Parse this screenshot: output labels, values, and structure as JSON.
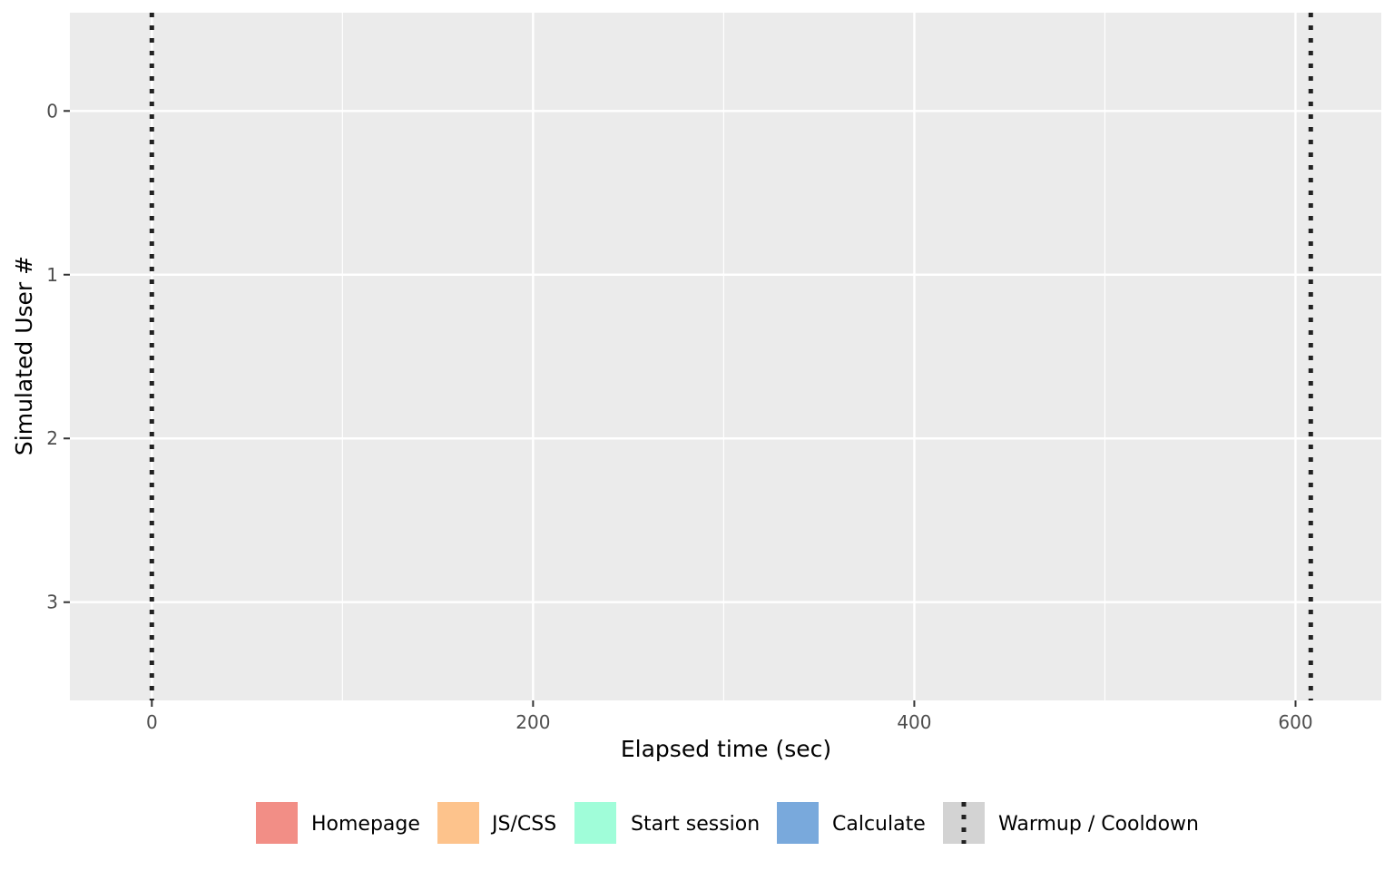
{
  "chart_data": {
    "type": "bar",
    "subtype": "timeline",
    "xlabel": "Elapsed time (sec)",
    "ylabel": "Simulated User #",
    "xlim": [
      -43,
      645
    ],
    "ylim": [
      -0.6,
      3.6
    ],
    "y_reversed": true,
    "x_ticks": [
      0,
      200,
      400,
      600
    ],
    "x_minor_gridlines": [
      100,
      300,
      500
    ],
    "y_ticks": [
      0,
      1,
      2,
      3
    ],
    "grid": true,
    "panel_background": "#ebebeb",
    "series": [
      {
        "name": "Homepage",
        "color": "#f28e86",
        "values": []
      },
      {
        "name": "JS/CSS",
        "color": "#fdc38c",
        "values": []
      },
      {
        "name": "Start session",
        "color": "#a0fdd9",
        "values": []
      },
      {
        "name": "Calculate",
        "color": "#79a9dc",
        "values": []
      }
    ],
    "reference_lines": {
      "name": "Warmup / Cooldown",
      "style": "dotted",
      "color": "#222222",
      "x": [
        0,
        608
      ]
    },
    "legend_position": "bottom"
  }
}
